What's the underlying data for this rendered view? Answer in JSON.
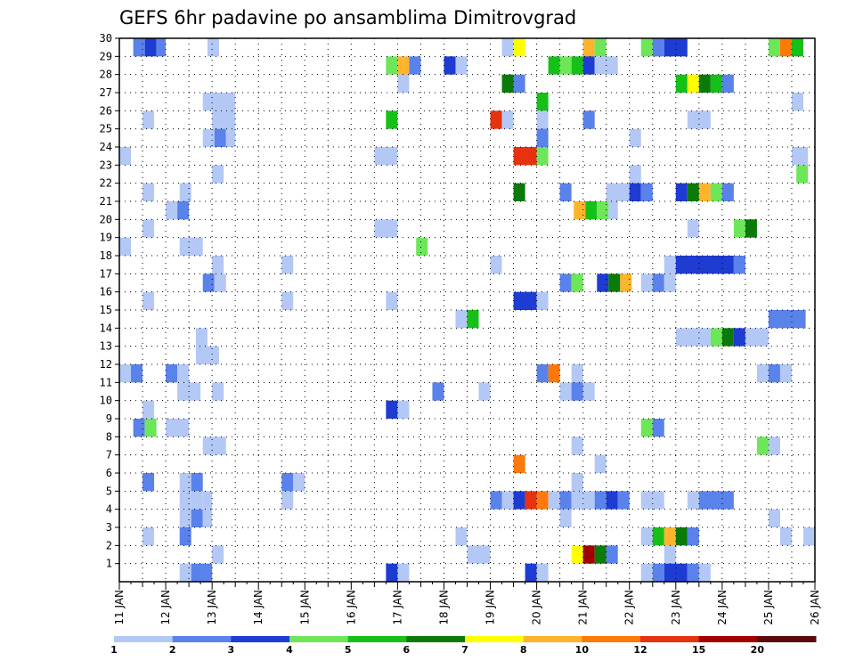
{
  "chart_data": {
    "type": "heatmap",
    "title": "GEFS 6hr padavine po ansamblima Dimitrovgrad",
    "x_ticks": [
      "11 JAN",
      "12 JAN",
      "13 JAN",
      "14 JAN",
      "15 JAN",
      "16 JAN",
      "17 JAN",
      "18 JAN",
      "19 JAN",
      "20 JAN",
      "21 JAN",
      "22 JAN",
      "23 JAN",
      "24 JAN",
      "25 JAN",
      "26 JAN"
    ],
    "x_range_days": [
      11,
      26
    ],
    "y_ticks": [
      "1",
      "2",
      "3",
      "4",
      "5",
      "6",
      "7",
      "8",
      "9",
      "10",
      "11",
      "12",
      "13",
      "14",
      "15",
      "16",
      "17",
      "18",
      "19",
      "20",
      "21",
      "22",
      "23",
      "24",
      "25",
      "26",
      "27",
      "28",
      "29",
      "30"
    ],
    "y_range": [
      0,
      30
    ],
    "grid": "dotted",
    "legend": {
      "placement": "bottom",
      "labels": [
        "1",
        "2",
        "3",
        "4",
        "5",
        "6",
        "7",
        "8",
        "10",
        "12",
        "15",
        "20"
      ],
      "colors": [
        "#b4c8f5",
        "#5a82eb",
        "#1e3cd2",
        "#6ee65a",
        "#16c018",
        "#0a7a0a",
        "#ffff00",
        "#ffb42d",
        "#ff780a",
        "#e6320f",
        "#a00000",
        "#5a0a0a"
      ]
    },
    "levels": [
      1,
      2,
      3,
      4,
      5,
      6,
      7,
      8,
      10,
      12,
      15,
      20
    ],
    "cells_format": "[member_row, day_start, day_end, color_level_index]",
    "cells": [
      [
        30,
        11.3,
        11.55,
        1
      ],
      [
        30,
        11.55,
        11.8,
        2
      ],
      [
        30,
        11.8,
        12.0,
        1
      ],
      [
        30,
        12.9,
        13.15,
        0
      ],
      [
        30,
        19.25,
        19.5,
        0
      ],
      [
        30,
        19.5,
        19.75,
        6
      ],
      [
        30,
        21.0,
        21.25,
        7
      ],
      [
        30,
        21.25,
        21.5,
        3
      ],
      [
        30,
        22.25,
        22.5,
        3
      ],
      [
        30,
        22.5,
        22.75,
        1
      ],
      [
        30,
        22.75,
        23.25,
        2
      ],
      [
        30,
        25.0,
        25.25,
        3
      ],
      [
        30,
        25.25,
        25.5,
        8
      ],
      [
        30,
        25.5,
        25.75,
        4
      ],
      [
        29,
        16.75,
        17.0,
        3
      ],
      [
        29,
        17.0,
        17.25,
        7
      ],
      [
        29,
        17.25,
        17.5,
        1
      ],
      [
        29,
        18.0,
        18.25,
        2
      ],
      [
        29,
        18.25,
        18.5,
        0
      ],
      [
        29,
        20.25,
        20.5,
        4
      ],
      [
        29,
        20.5,
        20.75,
        3
      ],
      [
        29,
        20.75,
        21.0,
        4
      ],
      [
        29,
        21.0,
        21.25,
        2
      ],
      [
        29,
        21.25,
        21.75,
        0
      ],
      [
        28,
        17.0,
        17.25,
        0
      ],
      [
        28,
        19.25,
        19.5,
        5
      ],
      [
        28,
        19.5,
        19.75,
        1
      ],
      [
        28,
        23.0,
        23.25,
        4
      ],
      [
        28,
        23.25,
        23.5,
        6
      ],
      [
        28,
        23.5,
        23.75,
        5
      ],
      [
        28,
        23.75,
        24.0,
        4
      ],
      [
        28,
        24.0,
        24.25,
        1
      ],
      [
        27,
        12.8,
        13.3,
        0
      ],
      [
        27,
        13.0,
        13.5,
        0
      ],
      [
        27,
        20.0,
        20.25,
        4
      ],
      [
        27,
        25.5,
        25.75,
        0
      ],
      [
        26,
        11.5,
        11.75,
        0
      ],
      [
        26,
        13.0,
        13.5,
        0
      ],
      [
        26,
        16.75,
        17.0,
        4
      ],
      [
        26,
        19.0,
        19.25,
        9
      ],
      [
        26,
        19.25,
        19.5,
        0
      ],
      [
        26,
        20.0,
        20.25,
        0
      ],
      [
        26,
        21.0,
        21.25,
        1
      ],
      [
        26,
        23.25,
        23.75,
        0
      ],
      [
        25,
        12.8,
        13.05,
        0
      ],
      [
        25,
        13.05,
        13.3,
        1
      ],
      [
        25,
        13.3,
        13.5,
        0
      ],
      [
        25,
        20.0,
        20.25,
        1
      ],
      [
        25,
        22.0,
        22.25,
        0
      ],
      [
        24,
        11.0,
        11.25,
        0
      ],
      [
        24,
        16.5,
        17.0,
        0
      ],
      [
        24,
        19.5,
        20.0,
        9
      ],
      [
        24,
        20.0,
        20.25,
        3
      ],
      [
        24,
        25.5,
        25.85,
        0
      ],
      [
        23,
        13.0,
        13.25,
        0
      ],
      [
        23,
        22.0,
        22.25,
        0
      ],
      [
        23,
        25.6,
        25.85,
        3
      ],
      [
        22,
        11.5,
        11.75,
        0
      ],
      [
        22,
        12.3,
        12.55,
        0
      ],
      [
        22,
        19.5,
        19.75,
        5
      ],
      [
        22,
        20.5,
        20.75,
        1
      ],
      [
        22,
        21.5,
        22.0,
        0
      ],
      [
        22,
        22.0,
        22.25,
        2
      ],
      [
        22,
        22.25,
        22.5,
        1
      ],
      [
        22,
        23.0,
        23.25,
        2
      ],
      [
        22,
        23.25,
        23.5,
        5
      ],
      [
        22,
        23.5,
        23.75,
        7
      ],
      [
        22,
        23.75,
        24.0,
        3
      ],
      [
        22,
        24.0,
        24.25,
        1
      ],
      [
        21,
        12.0,
        12.25,
        0
      ],
      [
        21,
        12.25,
        12.5,
        1
      ],
      [
        21,
        20.8,
        21.05,
        7
      ],
      [
        21,
        21.05,
        21.3,
        4
      ],
      [
        21,
        21.3,
        21.55,
        3
      ],
      [
        21,
        21.55,
        21.75,
        0
      ],
      [
        20,
        11.5,
        11.75,
        0
      ],
      [
        20,
        16.5,
        17.0,
        0
      ],
      [
        20,
        23.25,
        23.5,
        0
      ],
      [
        20,
        24.25,
        24.5,
        3
      ],
      [
        20,
        24.5,
        24.75,
        5
      ],
      [
        19,
        11.0,
        11.25,
        0
      ],
      [
        19,
        12.3,
        12.8,
        0
      ],
      [
        19,
        17.4,
        17.65,
        3
      ],
      [
        18,
        13.0,
        13.25,
        0
      ],
      [
        18,
        14.5,
        14.75,
        0
      ],
      [
        18,
        19.0,
        19.25,
        0
      ],
      [
        18,
        22.75,
        23.0,
        0
      ],
      [
        18,
        23.0,
        24.25,
        2
      ],
      [
        18,
        24.25,
        24.5,
        1
      ],
      [
        17,
        12.8,
        13.05,
        1
      ],
      [
        17,
        13.05,
        13.3,
        0
      ],
      [
        17,
        20.5,
        20.75,
        1
      ],
      [
        17,
        20.75,
        21.0,
        3
      ],
      [
        17,
        21.3,
        21.55,
        2
      ],
      [
        17,
        21.55,
        21.8,
        5
      ],
      [
        17,
        21.8,
        22.05,
        7
      ],
      [
        17,
        22.25,
        22.5,
        0
      ],
      [
        17,
        22.5,
        22.75,
        1
      ],
      [
        17,
        22.75,
        23.0,
        0
      ],
      [
        16,
        11.5,
        11.75,
        0
      ],
      [
        16,
        14.5,
        14.75,
        0
      ],
      [
        16,
        16.75,
        17.0,
        0
      ],
      [
        16,
        19.5,
        20.0,
        2
      ],
      [
        16,
        20.0,
        20.25,
        0
      ],
      [
        15,
        18.25,
        18.5,
        0
      ],
      [
        15,
        18.5,
        18.75,
        4
      ],
      [
        15,
        25.0,
        25.8,
        1
      ],
      [
        14,
        12.65,
        12.9,
        0
      ],
      [
        14,
        23.0,
        23.75,
        0
      ],
      [
        14,
        23.75,
        24.0,
        3
      ],
      [
        14,
        24.0,
        24.25,
        5
      ],
      [
        14,
        24.25,
        24.5,
        2
      ],
      [
        14,
        24.5,
        25.0,
        0
      ],
      [
        13,
        12.65,
        13.15,
        0
      ],
      [
        12,
        11.0,
        11.25,
        0
      ],
      [
        12,
        11.25,
        11.5,
        1
      ],
      [
        12,
        12.0,
        12.25,
        1
      ],
      [
        12,
        12.25,
        12.5,
        0
      ],
      [
        12,
        20.0,
        20.25,
        1
      ],
      [
        12,
        20.25,
        20.5,
        8
      ],
      [
        12,
        20.75,
        21.0,
        0
      ],
      [
        12,
        24.75,
        25.0,
        0
      ],
      [
        12,
        25.0,
        25.25,
        1
      ],
      [
        12,
        25.25,
        25.5,
        0
      ],
      [
        11,
        12.25,
        12.75,
        0
      ],
      [
        11,
        13.0,
        13.25,
        0
      ],
      [
        11,
        17.75,
        18.0,
        1
      ],
      [
        11,
        18.75,
        19.0,
        0
      ],
      [
        11,
        20.5,
        20.75,
        0
      ],
      [
        11,
        20.75,
        21.0,
        1
      ],
      [
        11,
        21.0,
        21.25,
        0
      ],
      [
        10,
        11.5,
        11.75,
        0
      ],
      [
        10,
        16.75,
        17.0,
        2
      ],
      [
        10,
        17.0,
        17.25,
        0
      ],
      [
        9,
        11.3,
        11.55,
        1
      ],
      [
        9,
        11.55,
        11.8,
        3
      ],
      [
        9,
        12.0,
        12.5,
        0
      ],
      [
        9,
        22.25,
        22.5,
        3
      ],
      [
        9,
        22.5,
        22.75,
        1
      ],
      [
        8,
        12.8,
        13.3,
        0
      ],
      [
        8,
        20.75,
        21.0,
        0
      ],
      [
        8,
        24.75,
        25.0,
        3
      ],
      [
        8,
        25.0,
        25.25,
        0
      ],
      [
        7,
        19.5,
        19.75,
        8
      ],
      [
        7,
        21.25,
        21.5,
        0
      ],
      [
        6,
        11.5,
        11.75,
        1
      ],
      [
        6,
        12.3,
        12.55,
        0
      ],
      [
        6,
        12.55,
        12.8,
        1
      ],
      [
        6,
        14.5,
        14.75,
        1
      ],
      [
        6,
        14.75,
        15.0,
        0
      ],
      [
        6,
        20.75,
        21.0,
        0
      ],
      [
        5,
        12.3,
        12.55,
        0
      ],
      [
        5,
        12.55,
        12.8,
        0
      ],
      [
        5,
        12.8,
        13.0,
        0
      ],
      [
        5,
        14.5,
        14.75,
        0
      ],
      [
        5,
        19.0,
        19.25,
        1
      ],
      [
        5,
        19.25,
        19.5,
        0
      ],
      [
        5,
        19.5,
        19.75,
        2
      ],
      [
        5,
        19.75,
        20.0,
        9
      ],
      [
        5,
        20.0,
        20.25,
        8
      ],
      [
        5,
        20.25,
        20.5,
        0
      ],
      [
        5,
        20.5,
        20.75,
        1
      ],
      [
        5,
        20.75,
        21.0,
        0
      ],
      [
        5,
        21.0,
        21.25,
        0
      ],
      [
        5,
        21.25,
        21.5,
        1
      ],
      [
        5,
        21.5,
        21.75,
        2
      ],
      [
        5,
        21.75,
        22.0,
        1
      ],
      [
        5,
        22.25,
        22.75,
        0
      ],
      [
        5,
        23.25,
        23.5,
        0
      ],
      [
        5,
        23.5,
        24.25,
        1
      ],
      [
        4,
        12.3,
        12.55,
        0
      ],
      [
        4,
        12.55,
        12.8,
        1
      ],
      [
        4,
        12.8,
        13.0,
        0
      ],
      [
        4,
        20.5,
        20.75,
        0
      ],
      [
        4,
        25.0,
        25.25,
        0
      ],
      [
        3,
        11.5,
        11.75,
        0
      ],
      [
        3,
        12.3,
        12.55,
        1
      ],
      [
        3,
        18.25,
        18.5,
        0
      ],
      [
        3,
        22.25,
        22.5,
        0
      ],
      [
        3,
        22.5,
        22.75,
        4
      ],
      [
        3,
        22.75,
        23.0,
        7
      ],
      [
        3,
        23.0,
        23.25,
        5
      ],
      [
        3,
        23.25,
        23.5,
        1
      ],
      [
        3,
        25.25,
        25.5,
        0
      ],
      [
        3,
        25.75,
        26.0,
        0
      ],
      [
        2,
        13.0,
        13.25,
        0
      ],
      [
        2,
        18.5,
        19.0,
        0
      ],
      [
        2,
        20.75,
        21.0,
        6
      ],
      [
        2,
        21.0,
        21.25,
        10
      ],
      [
        2,
        21.25,
        21.5,
        5
      ],
      [
        2,
        21.5,
        21.75,
        1
      ],
      [
        2,
        22.75,
        23.0,
        0
      ],
      [
        1,
        12.3,
        12.55,
        0
      ],
      [
        1,
        12.55,
        13.0,
        1
      ],
      [
        1,
        16.75,
        17.0,
        2
      ],
      [
        1,
        17.0,
        17.25,
        0
      ],
      [
        1,
        19.75,
        20.0,
        2
      ],
      [
        1,
        20.0,
        20.25,
        0
      ],
      [
        1,
        22.25,
        22.5,
        0
      ],
      [
        1,
        22.5,
        22.75,
        1
      ],
      [
        1,
        22.75,
        23.25,
        2
      ],
      [
        1,
        23.25,
        23.5,
        1
      ],
      [
        1,
        23.5,
        23.75,
        0
      ]
    ]
  }
}
